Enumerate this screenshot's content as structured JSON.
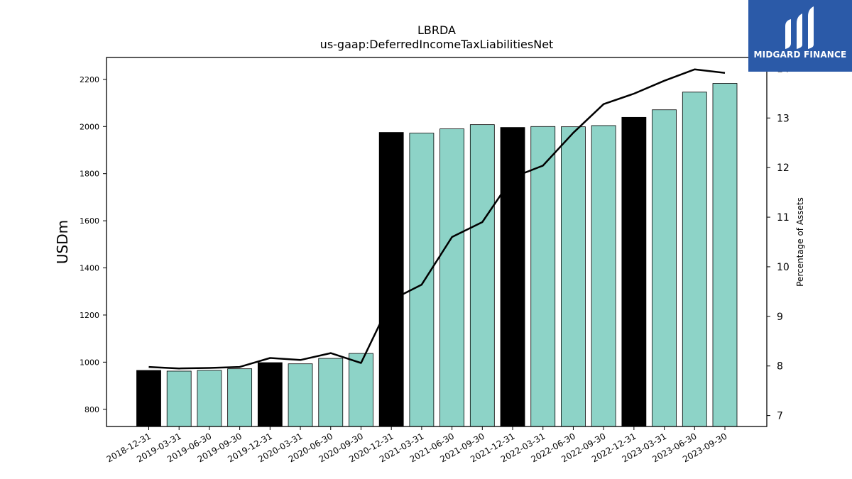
{
  "brand": {
    "name": "MIDGARD FINANCE",
    "logo_icon": "midgard-m-icon",
    "background_color": "#2b5aa8"
  },
  "colors": {
    "bar_regular": "#8dd3c7",
    "bar_year_end": "#000000",
    "line": "#000000"
  },
  "chart_data": {
    "type": "bar",
    "title": "LBRDA",
    "subtitle": "us-gaap:DeferredIncomeTaxLiabilitiesNet",
    "ylabel": "USDm",
    "y2label": "Percentage of Assets",
    "categories": [
      "2018-12-31",
      "2019-03-31",
      "2019-06-30",
      "2019-09-30",
      "2019-12-31",
      "2020-03-31",
      "2020-06-30",
      "2020-09-30",
      "2020-12-31",
      "2021-03-31",
      "2021-06-30",
      "2021-09-30",
      "2021-12-31",
      "2022-03-31",
      "2022-06-30",
      "2022-09-30",
      "2022-12-31",
      "2023-03-31",
      "2023-06-30",
      "2023-09-30"
    ],
    "series": [
      {
        "type": "bar",
        "values": [
          965,
          962,
          965,
          972,
          998,
          993,
          1016,
          1037,
          1975,
          1972,
          1990,
          2008,
          1996,
          2000,
          1999,
          2004,
          2039,
          2071,
          2146,
          2183
        ],
        "year_end_highlight": [
          true,
          false,
          false,
          false,
          true,
          false,
          false,
          false,
          true,
          false,
          false,
          false,
          true,
          false,
          false,
          false,
          true,
          false,
          false,
          false
        ]
      },
      {
        "type": "line",
        "axis": "right",
        "values": [
          7.98,
          7.95,
          7.96,
          7.98,
          8.16,
          8.12,
          8.26,
          8.06,
          9.33,
          9.64,
          10.6,
          10.9,
          11.8,
          12.04,
          12.7,
          13.28,
          13.49,
          13.75,
          13.98,
          13.91
        ]
      }
    ],
    "yticks": [
      800,
      1000,
      1200,
      1400,
      1600,
      1800,
      2000,
      2200
    ],
    "y2ticks": [
      7,
      8,
      9,
      10,
      11,
      12,
      13,
      14
    ],
    "ylim": [
      727,
      2293
    ],
    "y2lim": [
      6.78,
      14.22
    ],
    "grid": false,
    "legend": "none"
  }
}
